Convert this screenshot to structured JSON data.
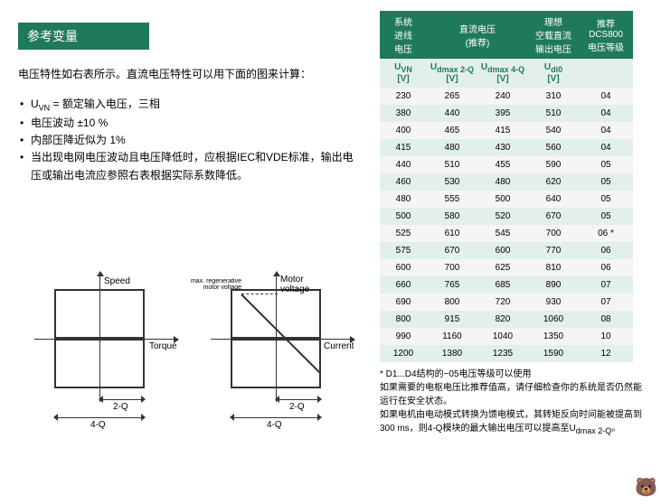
{
  "title": "参考变量",
  "intro": "电压特性如右表所示。直流电压特性可以用下面的图来计算：",
  "bullets": [
    "U<sub class='sub'>VN</sub> = 额定输入电压，三相",
    "电压波动 ±10 %",
    "内部压降近似为 1%",
    "当出现电网电压波动且电压降低时，应根据IEC和VDE标准，输出电压或输出电流应参照右表根据实际系数降低。"
  ],
  "diagrams": {
    "d1": {
      "speed": "Speed",
      "torque": "Torque",
      "q2": "2-Q",
      "q4": "4-Q"
    },
    "d2": {
      "mv": "Motor\nvoltage",
      "cur": "Current",
      "q2": "2-Q",
      "q4": "4-Q",
      "note": "max. regenerative\nmotor voltage"
    }
  },
  "table": {
    "headers": [
      "系统\n进线\n电压",
      "直流电压\n(推荐)",
      "理想\n空载直流\n输出电压",
      "推荐\nDCS800\n电压等级"
    ],
    "sub": [
      "U<sub class='sub'>VN</sub><br>[V]",
      "U<sub class='sub'>dmax 2-Q</sub><br>[V]",
      "U<sub class='sub'>dmax 4-Q</sub><br>[V]",
      "U<sub class='sub'>di0</sub><br>[V]",
      ""
    ],
    "rows": [
      [
        "230",
        "265",
        "240",
        "310",
        "04"
      ],
      [
        "380",
        "440",
        "395",
        "510",
        "04"
      ],
      [
        "400",
        "465",
        "415",
        "540",
        "04"
      ],
      [
        "415",
        "480",
        "430",
        "560",
        "04"
      ],
      [
        "440",
        "510",
        "455",
        "590",
        "05"
      ],
      [
        "460",
        "530",
        "480",
        "620",
        "05"
      ],
      [
        "480",
        "555",
        "500",
        "640",
        "05"
      ],
      [
        "500",
        "580",
        "520",
        "670",
        "05"
      ],
      [
        "525",
        "610",
        "545",
        "700",
        "06 *"
      ],
      [
        "575",
        "670",
        "600",
        "770",
        "06"
      ],
      [
        "600",
        "700",
        "625",
        "810",
        "06"
      ],
      [
        "660",
        "765",
        "685",
        "890",
        "07"
      ],
      [
        "690",
        "800",
        "720",
        "930",
        "07"
      ],
      [
        "800",
        "915",
        "820",
        "1060",
        "08"
      ],
      [
        "990",
        "1160",
        "1040",
        "1350",
        "10"
      ],
      [
        "1200",
        "1380",
        "1235",
        "1590",
        "12"
      ]
    ]
  },
  "footnotes": [
    "* D1...D4结构的−05电压等级可以使用",
    "如果需要的电枢电压比推荐值高，请仔细检查你的系统是否仍然能运行在安全状态。",
    "如果电机由电动模式转换为馈电模式，其转矩反向时间能被提高到300 ms，则4-Q模块的最大输出电压可以提高至U<sub class='sub'>dmax 2-Q</sub>。"
  ],
  "colors": {
    "green": "#1f7a5a",
    "lightgreen": "#e3efe9",
    "gray": "#f5f5f5"
  }
}
